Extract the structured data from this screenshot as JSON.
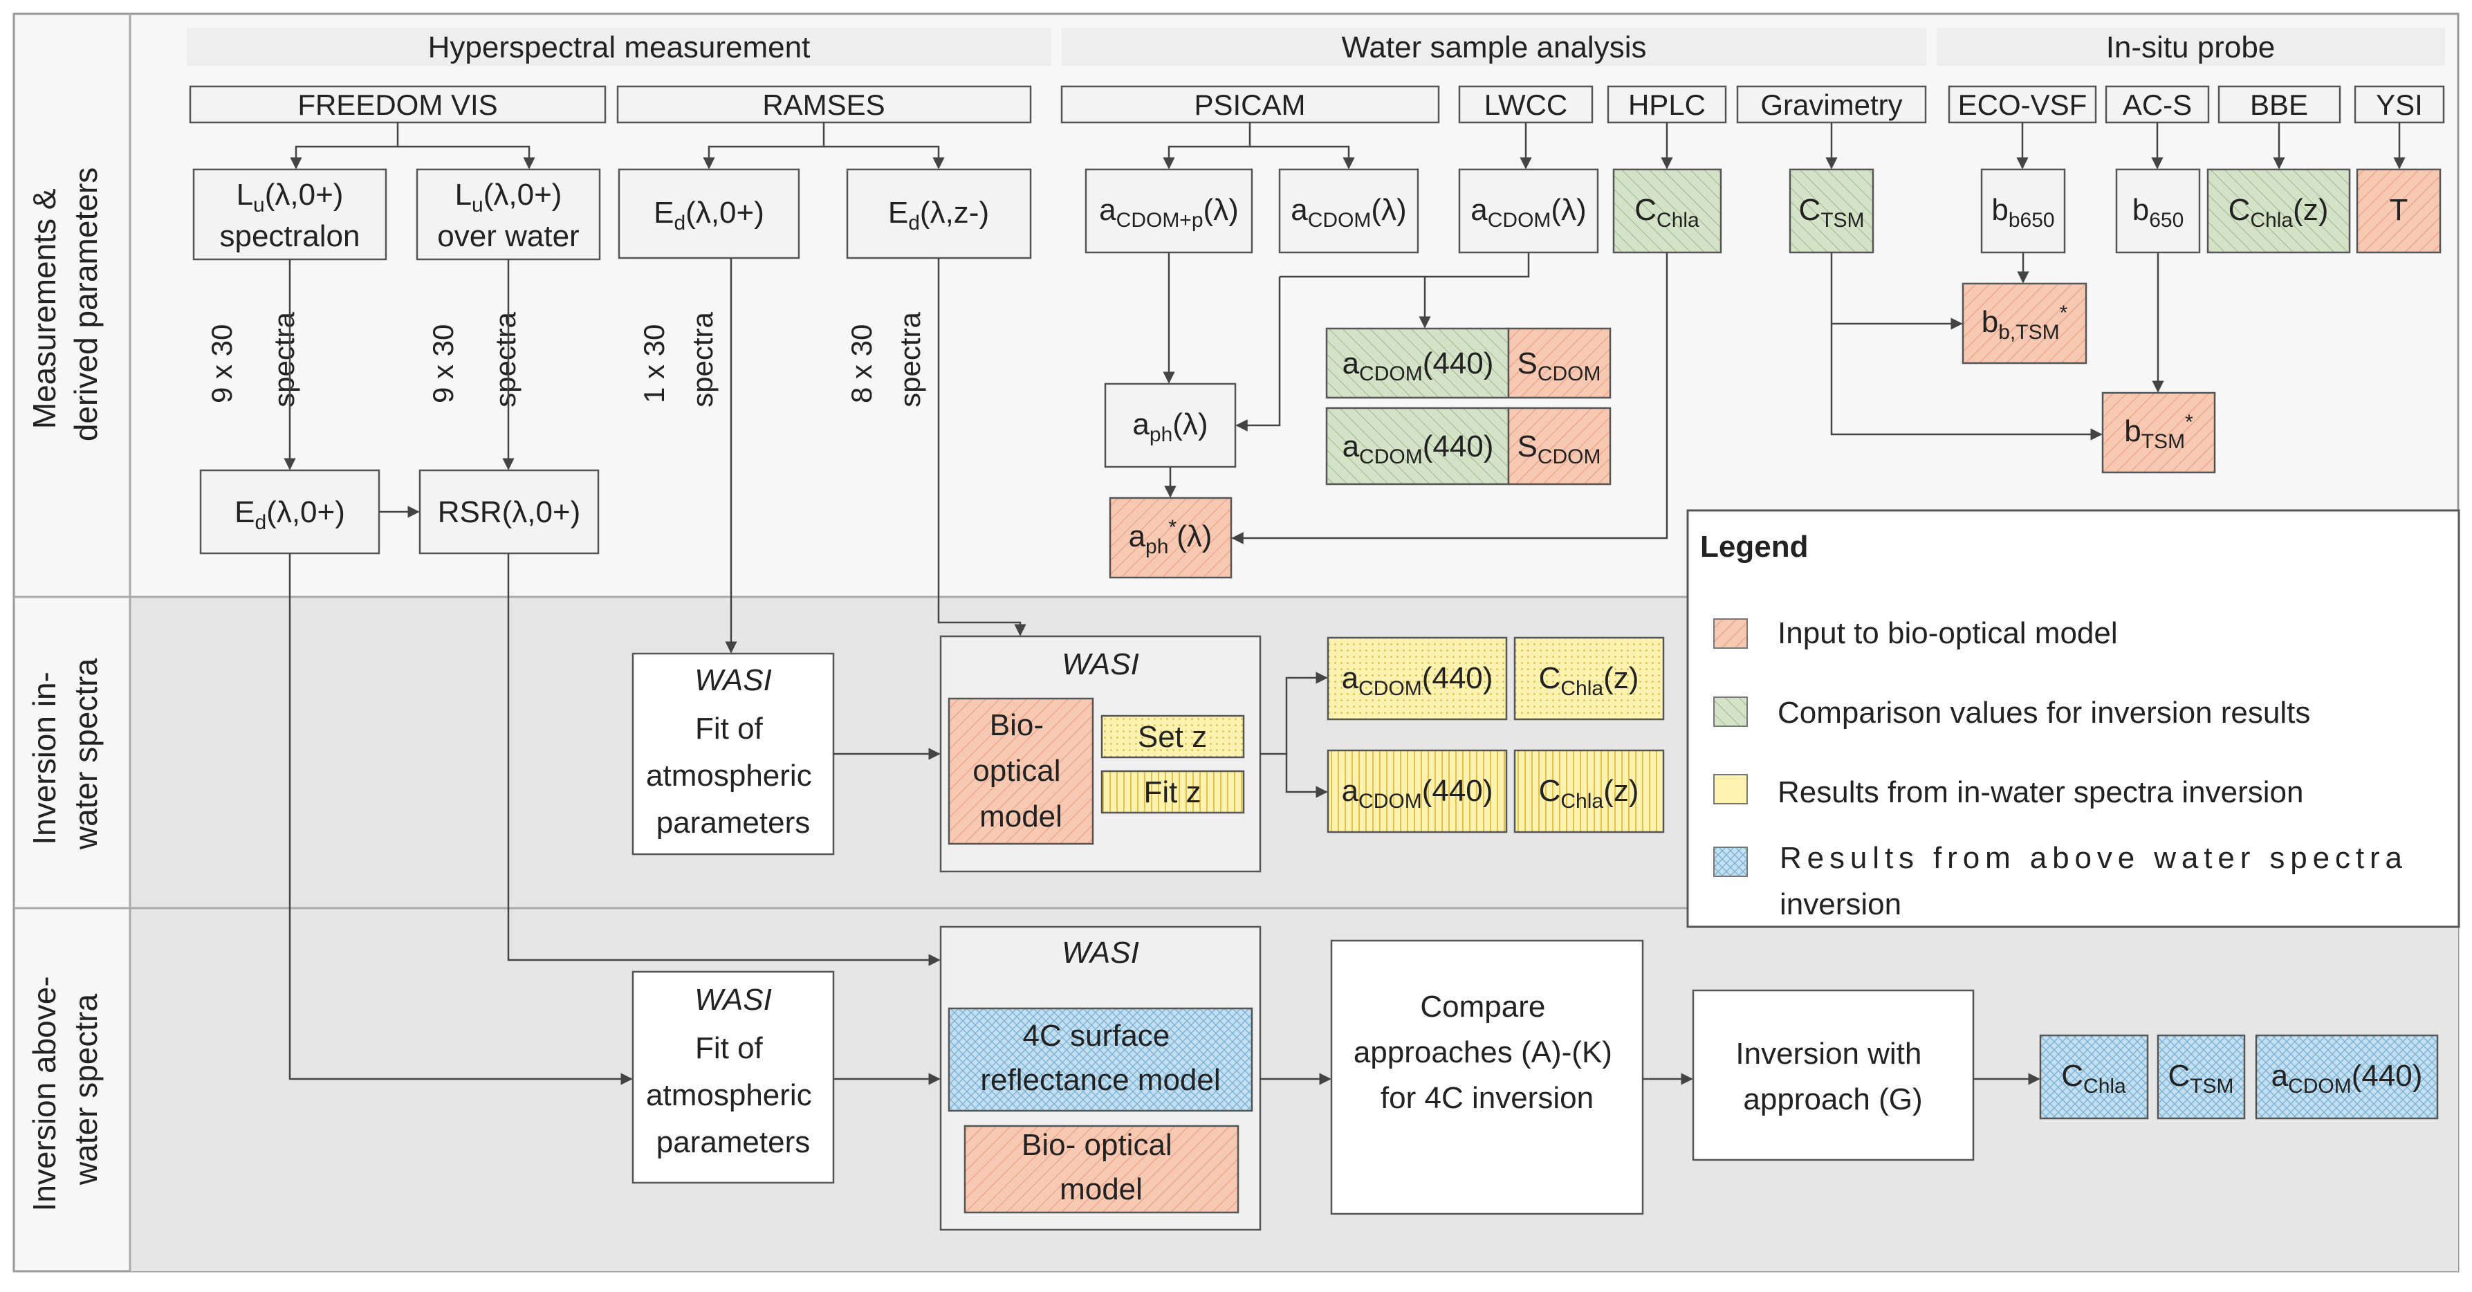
{
  "colors": {
    "input": "#f7c9b3",
    "comparison": "#d4e3c8",
    "in_water": "#fdf2b0",
    "above_water": "#c4e0f0",
    "plain": "#f3f3f3",
    "panel": "#e6e6e6",
    "header": "#eeeeee",
    "wasi_group": "#f0f0f0",
    "white": "#ffffff"
  },
  "rows": {
    "measurements": [
      "Measurements &",
      "derived parameters"
    ],
    "inversion_in": [
      "Inversion in-",
      "water spectra"
    ],
    "inversion_above": [
      "Inversion above-",
      "water spectra"
    ]
  },
  "headers": {
    "hyperspectral": "Hyperspectral measurement",
    "water_sample": "Water sample analysis",
    "insitu": "In-situ probe"
  },
  "instruments": {
    "freedom": "FREEDOM VIS",
    "ramses": "RAMSES",
    "psicam": "PSICAM",
    "lwcc": "LWCC",
    "hplc": "HPLC",
    "gravimetry": "Gravimetry",
    "ecovsf": "ECO-VSF",
    "acs": "AC-S",
    "bbe": "BBE",
    "ysi": "YSI"
  },
  "boxes": {
    "lu_spectralon_line2": "spectralon",
    "lu_water_line2": "over water",
    "ysi_t": "T",
    "wasi": "WASI",
    "fit_atmo": [
      "Fit of",
      "atmospheric",
      "parameters"
    ],
    "bio_optical_three": [
      "Bio-",
      "optical",
      "model"
    ],
    "set_z": "Set z",
    "fit_z": "Fit z",
    "fourc": [
      "4C surface",
      "reflectance model"
    ],
    "bio_optical_two": [
      "Bio- optical",
      "model"
    ],
    "compare": [
      "Compare",
      "approaches (A)-(K)",
      "for 4C inversion"
    ],
    "inversion_g": [
      "Inversion with",
      "approach (G)"
    ]
  },
  "spectra": {
    "s1": [
      "9 x 30",
      "spectra"
    ],
    "s2": [
      "9 x 30",
      "spectra"
    ],
    "s3": [
      "1 x 30",
      "spectra"
    ],
    "s4": [
      "8 x 30",
      "spectra"
    ]
  },
  "legend": {
    "title": "Legend",
    "items": [
      "Input to bio-optical model",
      "Comparison values for inversion results",
      "Results from in-water spectra inversion",
      "Results from above water spectra",
      "inversion"
    ]
  }
}
